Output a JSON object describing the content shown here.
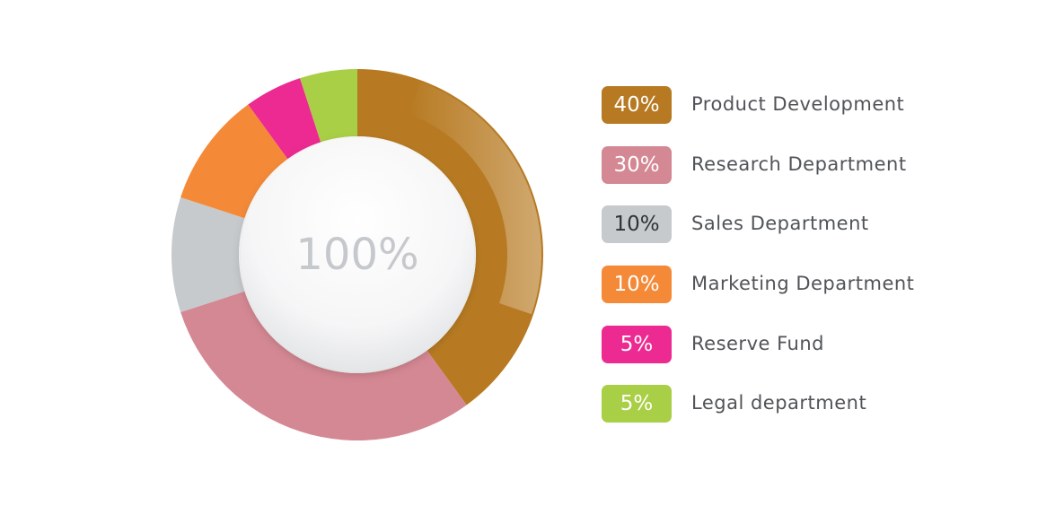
{
  "chart_data": {
    "type": "pie",
    "variant": "donut",
    "center_label": "100%",
    "legend_position": "right",
    "slices": [
      {
        "label": "Product Development",
        "value": 40,
        "value_label": "40%",
        "color": "#b77a22"
      },
      {
        "label": "Research Department",
        "value": 30,
        "value_label": "30%",
        "color": "#d48893"
      },
      {
        "label": "Sales Department",
        "value": 10,
        "value_label": "10%",
        "color": "#c6cacd"
      },
      {
        "label": "Marketing Department",
        "value": 10,
        "value_label": "10%",
        "color": "#f48a38"
      },
      {
        "label": "Reserve Fund",
        "value": 5,
        "value_label": "5%",
        "color": "#ec2a91"
      },
      {
        "label": "Legal department",
        "value": 5,
        "value_label": "5%",
        "color": "#a8cf45"
      }
    ]
  }
}
